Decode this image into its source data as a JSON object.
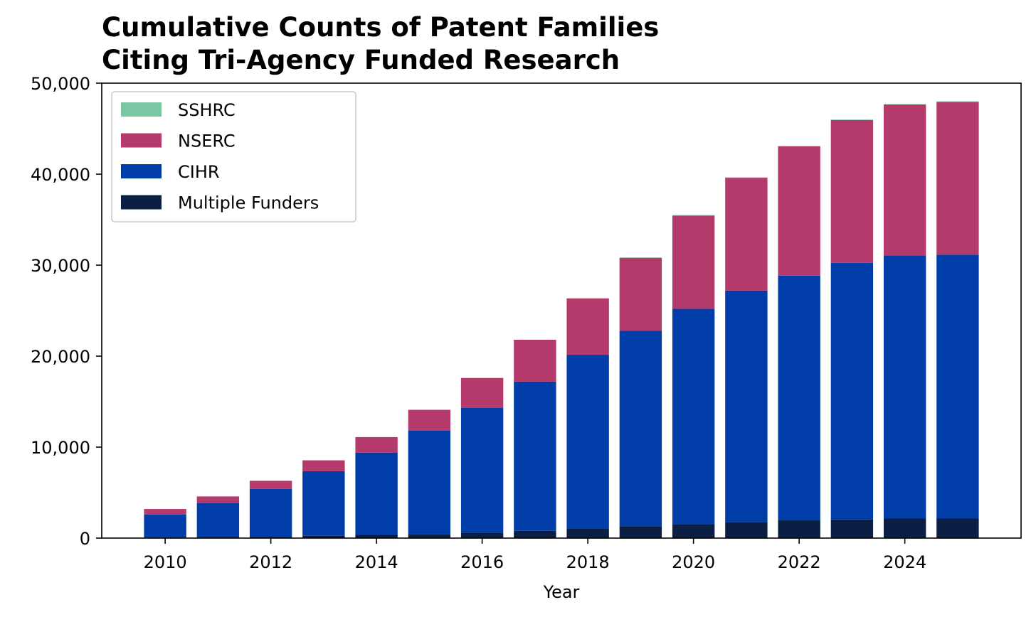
{
  "chart_data": {
    "type": "bar",
    "stacked": true,
    "title_lines": [
      "Cumulative Counts of Patent Families",
      "Citing Tri-Agency Funded Research"
    ],
    "xlabel": "Year",
    "ylabel": "",
    "x": [
      2010,
      2011,
      2012,
      2013,
      2014,
      2015,
      2016,
      2017,
      2018,
      2019,
      2020,
      2021,
      2022,
      2023,
      2024,
      2025
    ],
    "xlim": [
      2008.8,
      2026.2
    ],
    "ylim": [
      0,
      50000
    ],
    "x_ticks": [
      2010,
      2012,
      2014,
      2016,
      2018,
      2020,
      2022,
      2024
    ],
    "x_tick_labels": [
      "2010",
      "2012",
      "2014",
      "2016",
      "2018",
      "2020",
      "2022",
      "2024"
    ],
    "y_ticks": [
      0,
      10000,
      20000,
      30000,
      40000,
      50000
    ],
    "y_tick_labels": [
      "0",
      "10,000",
      "20,000",
      "30,000",
      "40,000",
      "50,000"
    ],
    "grid": false,
    "legend_position": "upper-left",
    "series": [
      {
        "name": "Multiple Funders",
        "color": "#0b1f45",
        "values": [
          50,
          80,
          150,
          250,
          350,
          450,
          600,
          800,
          1050,
          1300,
          1550,
          1750,
          1950,
          2050,
          2150,
          2150
        ]
      },
      {
        "name": "CIHR",
        "color": "#003da8",
        "values": [
          2550,
          3750,
          5250,
          7100,
          9050,
          11350,
          13700,
          16400,
          19100,
          21500,
          23650,
          25450,
          26900,
          28200,
          28900,
          29000
        ]
      },
      {
        "name": "NSERC",
        "color": "#b53a6c",
        "values": [
          600,
          750,
          900,
          1200,
          1700,
          2300,
          3300,
          4600,
          6200,
          8000,
          10250,
          12400,
          14200,
          15700,
          16600,
          16800
        ]
      },
      {
        "name": "SSHRC",
        "color": "#7cc6a4",
        "values": [
          0,
          0,
          0,
          0,
          0,
          0,
          0,
          0,
          0,
          50,
          50,
          50,
          50,
          50,
          50,
          50
        ]
      }
    ],
    "legend_order": [
      "SSHRC",
      "NSERC",
      "CIHR",
      "Multiple Funders"
    ]
  }
}
